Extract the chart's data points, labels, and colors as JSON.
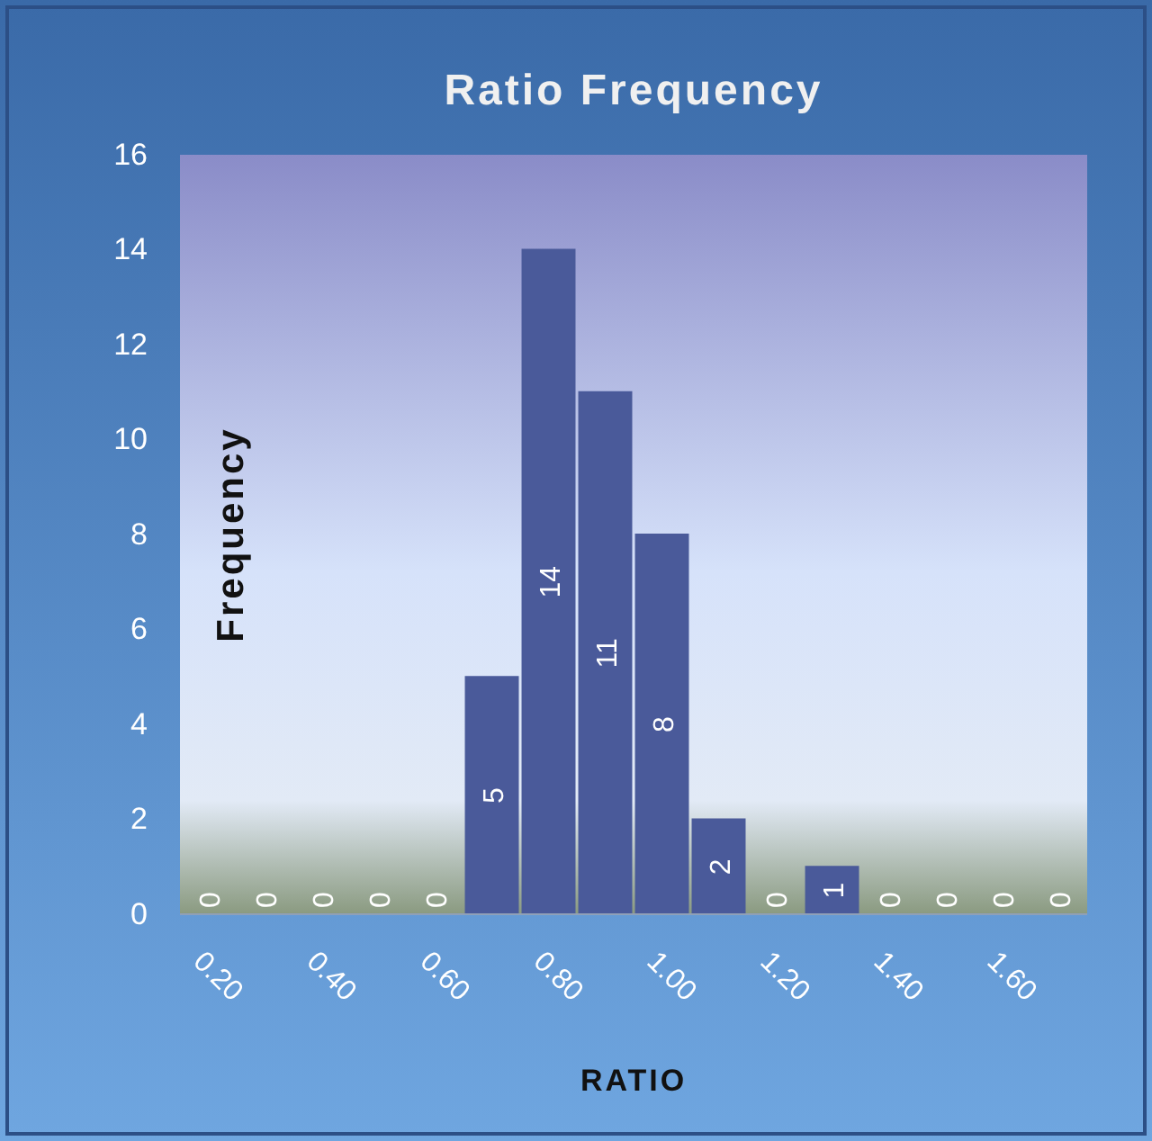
{
  "chart_data": {
    "type": "bar",
    "title": "Ratio Frequency",
    "xlabel": "RATIO",
    "ylabel": "Frequency",
    "categories": [
      "0.20",
      null,
      "0.40",
      null,
      "0.60",
      null,
      "0.80",
      null,
      "1.00",
      null,
      "1.20",
      null,
      "1.40",
      null,
      "1.60",
      null
    ],
    "values": [
      0,
      0,
      0,
      0,
      0,
      5,
      14,
      11,
      8,
      2,
      0,
      1,
      0,
      0,
      0,
      0
    ],
    "color": "#4a5a9a",
    "ylim": [
      0,
      16
    ],
    "yticks": [
      0,
      2,
      4,
      6,
      8,
      10,
      12,
      14,
      16
    ],
    "data_labels": true,
    "grid": false
  }
}
